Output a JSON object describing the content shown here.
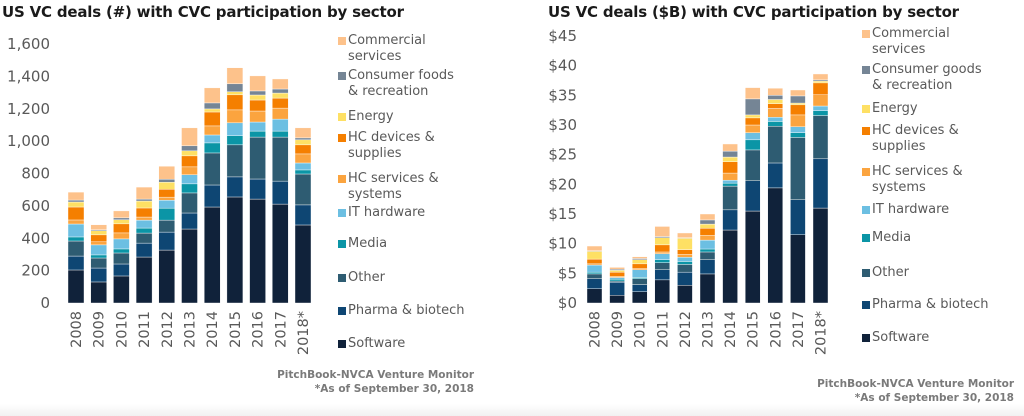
{
  "chart_data": [
    {
      "type": "bar",
      "stacked": true,
      "title": "US VC deals (#) with CVC participation by sector",
      "xlabel": "",
      "ylabel": "",
      "ylim": [
        0,
        1600
      ],
      "yticks": [
        0,
        200,
        400,
        600,
        800,
        1000,
        1200,
        1400,
        1600
      ],
      "ytick_labels": [
        "0",
        "200",
        "400",
        "600",
        "800",
        "1,000",
        "1,200",
        "1,400",
        "1,600"
      ],
      "grid": false,
      "legend_position": "right",
      "categories": [
        "2008",
        "2009",
        "2010",
        "2011",
        "2012",
        "2013",
        "2014",
        "2015",
        "2016",
        "2017",
        "2018*"
      ],
      "series": [
        {
          "name": "Software",
          "color": "#10223a",
          "values": [
            204,
            130,
            167,
            284,
            327,
            457,
            593,
            655,
            642,
            611,
            482
          ]
        },
        {
          "name": "Pharma & biotech",
          "color": "#0e4673",
          "values": [
            86,
            86,
            74,
            86,
            111,
            99,
            136,
            124,
            124,
            142,
            124
          ]
        },
        {
          "name": "Other",
          "color": "#2e5c72",
          "values": [
            93,
            62,
            68,
            62,
            74,
            124,
            198,
            198,
            259,
            272,
            191
          ]
        },
        {
          "name": "Media",
          "color": "#0b95a6",
          "values": [
            25,
            19,
            25,
            31,
            74,
            56,
            62,
            56,
            37,
            37,
            25
          ]
        },
        {
          "name": "IT hardware",
          "color": "#6cbfe2",
          "values": [
            80,
            62,
            62,
            49,
            49,
            56,
            49,
            80,
            56,
            74,
            43
          ]
        },
        {
          "name": "HC services & systems",
          "color": "#fba43f",
          "values": [
            25,
            19,
            37,
            19,
            19,
            49,
            56,
            80,
            68,
            68,
            56
          ]
        },
        {
          "name": "HC devices & supplies",
          "color": "#f57f00",
          "values": [
            80,
            43,
            56,
            56,
            49,
            68,
            86,
            93,
            68,
            62,
            56
          ]
        },
        {
          "name": "Energy",
          "color": "#fee064",
          "values": [
            31,
            25,
            25,
            43,
            43,
            31,
            19,
            19,
            31,
            31,
            31
          ]
        },
        {
          "name": "Consumer foods & recreation",
          "color": "#758595",
          "values": [
            12,
            6,
            12,
            12,
            19,
            31,
            37,
            49,
            25,
            25,
            12
          ]
        },
        {
          "name": "Commercial services",
          "color": "#fdc28b",
          "values": [
            49,
            31,
            43,
            74,
            80,
            111,
            93,
            99,
            93,
            62,
            62
          ]
        }
      ],
      "legend": [
        {
          "label": "Commercial\nservices",
          "series": "Commercial services"
        },
        {
          "label": "Consumer foods\n& recreation",
          "series": "Consumer foods & recreation"
        },
        {
          "label": "Energy",
          "series": "Energy"
        },
        {
          "label": "HC devices &\nsupplies",
          "series": "HC devices & supplies"
        },
        {
          "label": "HC services &\nsystems",
          "series": "HC services & systems"
        },
        {
          "label": "IT hardware",
          "series": "IT hardware"
        },
        {
          "label": "Media",
          "series": "Media"
        },
        {
          "label": "Other",
          "series": "Other"
        },
        {
          "label": "Pharma & biotech",
          "series": "Pharma & biotech"
        },
        {
          "label": "Software",
          "series": "Software"
        }
      ],
      "source": "PitchBook-NVCA Venture Monitor",
      "note": "*As of September 30, 2018"
    },
    {
      "type": "bar",
      "stacked": true,
      "title": "US VC deals ($B) with CVC participation by sector",
      "xlabel": "",
      "ylabel": "",
      "ylim": [
        0,
        45
      ],
      "yticks": [
        0,
        5,
        10,
        15,
        20,
        25,
        30,
        35,
        40,
        45
      ],
      "ytick_labels": [
        "$0",
        "$5",
        "$10",
        "$15",
        "$20",
        "$25",
        "$30",
        "$35",
        "$40",
        "$45"
      ],
      "grid": false,
      "legend_position": "right",
      "categories": [
        "2008",
        "2009",
        "2010",
        "2011",
        "2012",
        "2013",
        "2014",
        "2015",
        "2016",
        "2017",
        "2018*"
      ],
      "series": [
        {
          "name": "Software",
          "color": "#10223a",
          "values": [
            2.4,
            1.3,
            1.9,
            3.9,
            3.0,
            4.9,
            12.3,
            15.5,
            19.4,
            11.5,
            16.0
          ]
        },
        {
          "name": "Pharma & biotech",
          "color": "#0e4673",
          "values": [
            1.7,
            2.2,
            1.2,
            1.7,
            2.2,
            2.4,
            3.4,
            5.1,
            4.2,
            5.9,
            8.3
          ]
        },
        {
          "name": "Other",
          "color": "#2e5c72",
          "values": [
            0.8,
            0.2,
            1.0,
            1.2,
            1.3,
            1.3,
            4.0,
            5.2,
            6.2,
            10.5,
            7.3
          ]
        },
        {
          "name": "Media",
          "color": "#0b95a6",
          "values": [
            0.3,
            0.3,
            0.2,
            0.5,
            0.5,
            0.5,
            0.5,
            1.7,
            0.8,
            0.8,
            0.8
          ]
        },
        {
          "name": "IT hardware",
          "color": "#6cbfe2",
          "values": [
            1.2,
            0.3,
            1.3,
            1.0,
            0.7,
            1.5,
            0.5,
            1.2,
            0.7,
            1.0,
            0.8
          ]
        },
        {
          "name": "HC services & systems",
          "color": "#fba43f",
          "values": [
            0.2,
            0.2,
            0.2,
            0.3,
            0.5,
            0.8,
            1.2,
            1.3,
            1.5,
            2.0,
            1.9
          ]
        },
        {
          "name": "HC devices & supplies",
          "color": "#f57f00",
          "values": [
            0.8,
            0.7,
            0.8,
            1.2,
            0.8,
            1.2,
            1.9,
            1.2,
            0.8,
            1.7,
            2.0
          ]
        },
        {
          "name": "Energy",
          "color": "#fee064",
          "values": [
            1.3,
            0.3,
            0.7,
            1.2,
            1.9,
            0.7,
            0.8,
            0.5,
            0.7,
            0.3,
            0.3
          ]
        },
        {
          "name": "Consumer goods & recreation",
          "color": "#758595",
          "values": [
            0.1,
            0.2,
            0.2,
            0.2,
            0.1,
            0.7,
            1.0,
            2.7,
            0.7,
            1.2,
            0.2
          ]
        },
        {
          "name": "Commercial services",
          "color": "#fdc28b",
          "values": [
            0.8,
            0.3,
            0.3,
            1.7,
            0.8,
            1.0,
            1.2,
            1.9,
            1.2,
            1.0,
            1.0
          ]
        }
      ],
      "legend": [
        {
          "label": "Commercial\nservices",
          "series": "Commercial services"
        },
        {
          "label": "Consumer goods\n& recreation",
          "series": "Consumer goods & recreation"
        },
        {
          "label": "Energy",
          "series": "Energy"
        },
        {
          "label": "HC devices &\nsupplies",
          "series": "HC devices & supplies"
        },
        {
          "label": "HC services &\nsystems",
          "series": "HC services & systems"
        },
        {
          "label": "IT hardware",
          "series": "IT hardware"
        },
        {
          "label": "Media",
          "series": "Media"
        },
        {
          "label": "Other",
          "series": "Other"
        },
        {
          "label": "Pharma & biotech",
          "series": "Pharma & biotech"
        },
        {
          "label": "Software",
          "series": "Software"
        }
      ],
      "source": "PitchBook-NVCA Venture Monitor",
      "note": "*As of September 30, 2018"
    }
  ]
}
